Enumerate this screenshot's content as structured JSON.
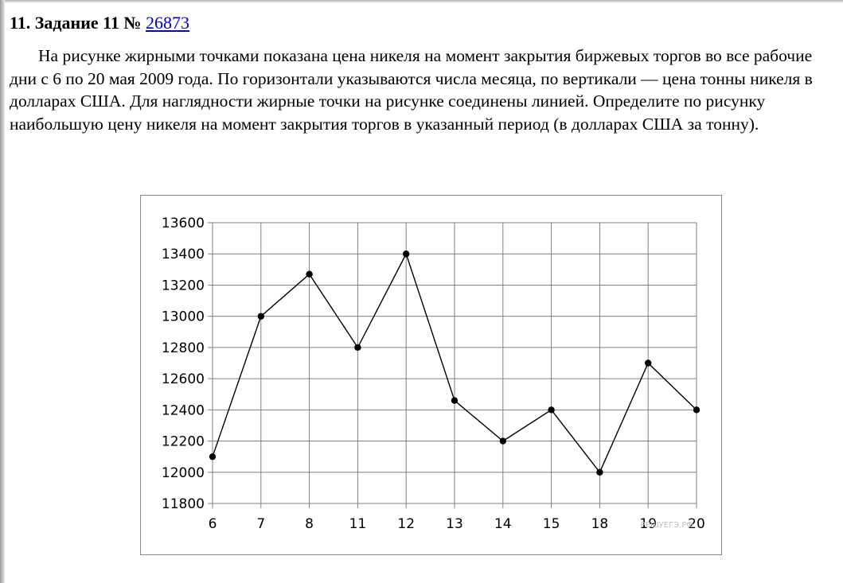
{
  "task": {
    "number_label": "11. Задание 11 №",
    "id_link": "26873",
    "text": "На рисунке жирными точками показана цена никеля на момент закрытия биржевых торгов во все рабочие дни с 6 по 20 мая 2009 года. По горизонтали указываются числа месяца, по вертикали — цена тонны никеля в долларах США. Для наглядности жирные точки на рисунке соединены линией. Определите по рисунку наибольшую цену никеля на момент закрытия торгов в указанный период (в долларах США за тонну)."
  },
  "watermark": "РЕШУЕГЭ.РФ",
  "chart_data": {
    "type": "line",
    "categories": [
      "6",
      "7",
      "8",
      "11",
      "12",
      "13",
      "14",
      "15",
      "18",
      "19",
      "20"
    ],
    "values": [
      12100,
      13000,
      13270,
      12800,
      13400,
      12460,
      12200,
      12400,
      12000,
      12700,
      12400
    ],
    "ylim": [
      11800,
      13600
    ],
    "yticks": [
      11800,
      12000,
      12200,
      12400,
      12600,
      12800,
      13000,
      13200,
      13400,
      13600
    ],
    "grid": true,
    "markers": "filled-circle",
    "line_color": "#000000",
    "grid_color": "#808080"
  }
}
